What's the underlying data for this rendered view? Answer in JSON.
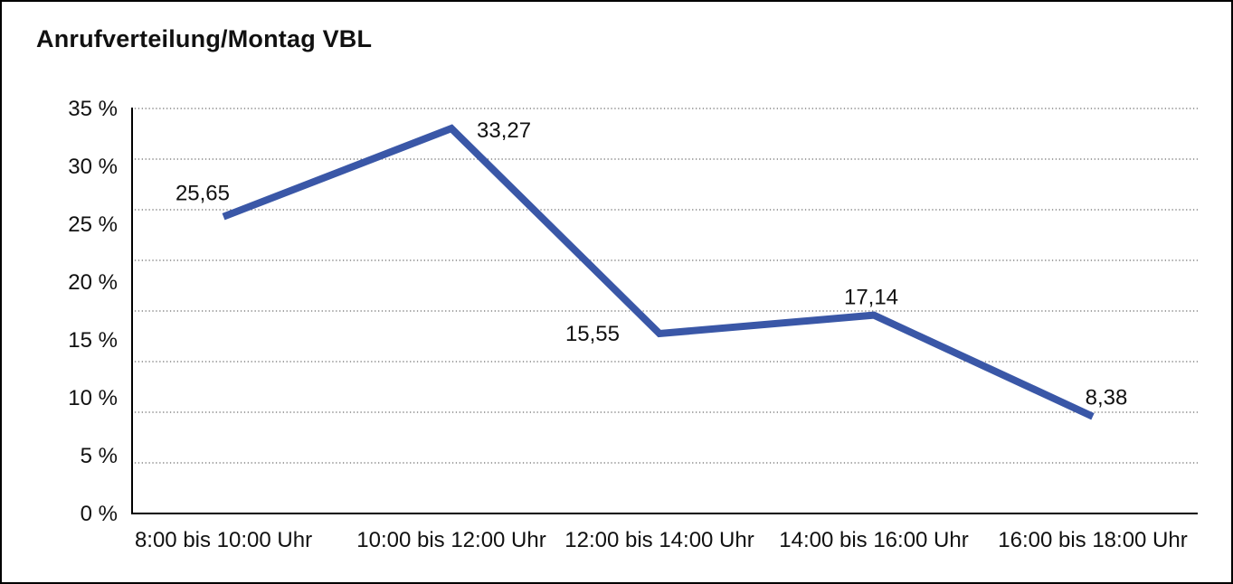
{
  "chart_data": {
    "type": "line",
    "title": "Anrufverteilung/Montag VBL",
    "categories": [
      "8:00 bis 10:00 Uhr",
      "10:00 bis 12:00 Uhr",
      "12:00 bis 14:00 Uhr",
      "14:00 bis 16:00 Uhr",
      "16:00 bis 18:00 Uhr"
    ],
    "values": [
      25.65,
      33.27,
      15.55,
      17.14,
      8.38
    ],
    "value_labels": [
      "25,65",
      "33,27",
      "15,55",
      "17,14",
      "8,38"
    ],
    "xlabel": "",
    "ylabel": "",
    "ylim": [
      0,
      35
    ],
    "y_tick_step": 5,
    "y_tick_labels": [
      "35 %",
      "30 %",
      "25 %",
      "20 %",
      "15 %",
      "10 %",
      "5 %",
      "0 %"
    ],
    "grid": "horizontal-dotted",
    "legend_position": "none",
    "colors": {
      "line": "#3A57A7",
      "axis": "#000000",
      "gridline": "#6e6e6e",
      "text": "#111111",
      "background": "#ffffff",
      "border": "#000000"
    }
  }
}
